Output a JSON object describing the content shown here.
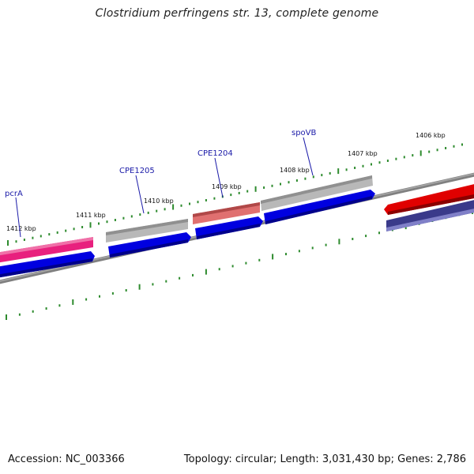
{
  "title": "Clostridium perfringens str. 13, complete genome",
  "footer": {
    "accession": "Accession: NC_003366",
    "summary": "Topology: circular; Length: 3,031,430 bp; Genes: 2,786"
  },
  "kbp_labels": [
    "1412 kbp",
    "1411 kbp",
    "1410 kbp",
    "1409 kbp",
    "1408 kbp",
    "1407 kbp",
    "1406 kbp"
  ],
  "gene_labels": [
    "pcrA",
    "CPE1205",
    "CPE1204",
    "spoVB"
  ],
  "colors": {
    "tick": "#2e8b2e",
    "backbone": "#808080",
    "forward_pink": "#e8207e",
    "grey_feature": "#b8b8b8",
    "salmon_feature": "#e07070",
    "blue_cds": "#0000e0",
    "red_cds": "#e00000",
    "navy_cds": "#3a3a8a",
    "gene_label": "#1a1aa8"
  }
}
